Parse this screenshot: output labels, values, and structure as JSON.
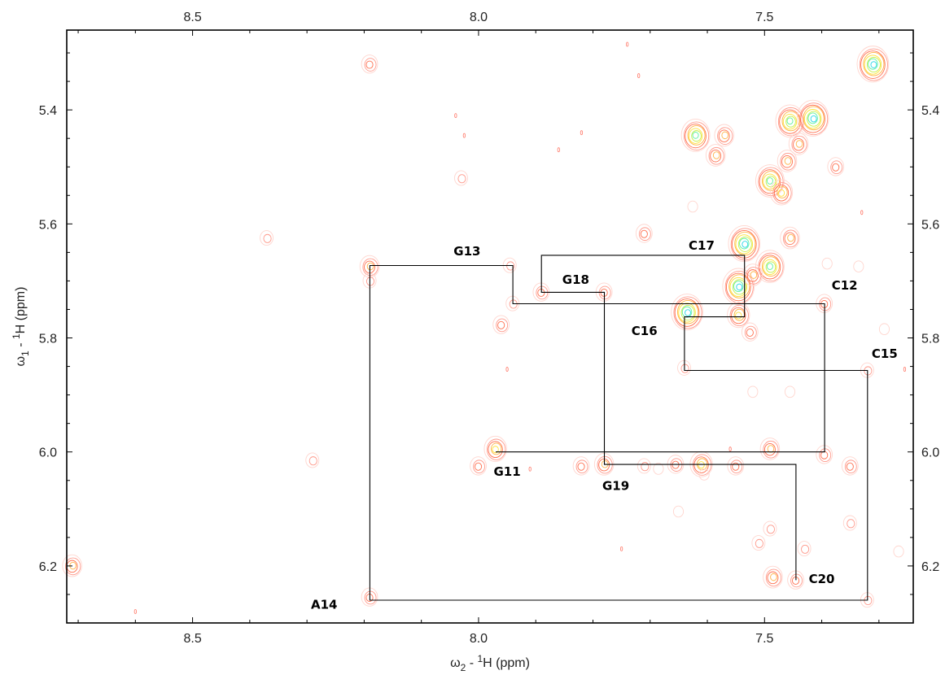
{
  "chart_data": {
    "type": "scatter",
    "subtype": "2D NMR contour spectrum (NOESY sequential walk)",
    "title": "",
    "x_axis": {
      "label_prefix": "ω",
      "label_sub": "2",
      "label_mid": " - ",
      "label_sup": "1",
      "label_suffix": "H  (ppm)",
      "lim": [
        8.72,
        7.24
      ],
      "reversed": true,
      "ticks": [
        8.5,
        8.0,
        7.5
      ],
      "tick_labels": [
        "8.5",
        "8.0",
        "7.5"
      ],
      "minor_step": 0.1
    },
    "y_axis": {
      "label_prefix": "ω",
      "label_sub": "1",
      "label_mid": " - ",
      "label_sup": "1",
      "label_suffix": "H  (ppm)",
      "lim": [
        5.26,
        6.3
      ],
      "reversed": true,
      "ticks": [
        5.4,
        5.6,
        5.8,
        6.0,
        6.2
      ],
      "tick_labels": [
        "5.4",
        "5.6",
        "5.8",
        "6.0",
        "6.2"
      ],
      "minor_step": 0.05
    },
    "grid": false,
    "contour_colors": [
      "#ffd6cf",
      "#ff9a8c",
      "#ff6f4e",
      "#ffb347",
      "#ffe23a",
      "#c6ef4a",
      "#5ff0a0",
      "#29d6e8"
    ],
    "peaks": [
      {
        "x": 8.19,
        "y": 5.32,
        "i": 3
      },
      {
        "x": 7.31,
        "y": 5.32,
        "i": 8
      },
      {
        "x": 7.62,
        "y": 5.445,
        "i": 7
      },
      {
        "x": 7.57,
        "y": 5.445,
        "i": 4
      },
      {
        "x": 7.455,
        "y": 5.42,
        "i": 7
      },
      {
        "x": 7.415,
        "y": 5.415,
        "i": 8
      },
      {
        "x": 7.44,
        "y": 5.46,
        "i": 4
      },
      {
        "x": 7.46,
        "y": 5.49,
        "i": 4
      },
      {
        "x": 7.49,
        "y": 5.525,
        "i": 7
      },
      {
        "x": 7.47,
        "y": 5.545,
        "i": 5
      },
      {
        "x": 7.585,
        "y": 5.48,
        "i": 4
      },
      {
        "x": 7.375,
        "y": 5.5,
        "i": 3
      },
      {
        "x": 8.03,
        "y": 5.52,
        "i": 2
      },
      {
        "x": 7.71,
        "y": 5.617,
        "i": 3
      },
      {
        "x": 7.535,
        "y": 5.635,
        "i": 8
      },
      {
        "x": 7.455,
        "y": 5.625,
        "i": 4
      },
      {
        "x": 7.49,
        "y": 5.675,
        "i": 7
      },
      {
        "x": 7.545,
        "y": 5.71,
        "i": 8
      },
      {
        "x": 7.52,
        "y": 5.69,
        "i": 4
      },
      {
        "x": 7.635,
        "y": 5.755,
        "i": 8
      },
      {
        "x": 7.545,
        "y": 5.76,
        "i": 5
      },
      {
        "x": 7.525,
        "y": 5.79,
        "i": 3
      },
      {
        "x": 8.19,
        "y": 5.675,
        "i": 4
      },
      {
        "x": 8.19,
        "y": 5.7,
        "i": 2
      },
      {
        "x": 7.945,
        "y": 5.673,
        "i": 2
      },
      {
        "x": 7.89,
        "y": 5.72,
        "i": 3
      },
      {
        "x": 7.78,
        "y": 5.72,
        "i": 3
      },
      {
        "x": 7.94,
        "y": 5.74,
        "i": 2
      },
      {
        "x": 7.96,
        "y": 5.777,
        "i": 3
      },
      {
        "x": 7.395,
        "y": 5.74,
        "i": 3
      },
      {
        "x": 7.32,
        "y": 5.857,
        "i": 2
      },
      {
        "x": 7.64,
        "y": 5.853,
        "i": 2
      },
      {
        "x": 8.37,
        "y": 5.625,
        "i": 2
      },
      {
        "x": 7.97,
        "y": 5.995,
        "i": 5
      },
      {
        "x": 8.0,
        "y": 6.025,
        "i": 3
      },
      {
        "x": 7.78,
        "y": 6.022,
        "i": 4
      },
      {
        "x": 7.82,
        "y": 6.025,
        "i": 3
      },
      {
        "x": 7.61,
        "y": 6.022,
        "i": 5
      },
      {
        "x": 7.655,
        "y": 6.022,
        "i": 3
      },
      {
        "x": 7.55,
        "y": 6.025,
        "i": 3
      },
      {
        "x": 7.49,
        "y": 5.995,
        "i": 4
      },
      {
        "x": 7.395,
        "y": 6.005,
        "i": 3
      },
      {
        "x": 7.35,
        "y": 6.025,
        "i": 3
      },
      {
        "x": 7.71,
        "y": 6.025,
        "i": 2
      },
      {
        "x": 7.35,
        "y": 6.125,
        "i": 2
      },
      {
        "x": 7.49,
        "y": 6.135,
        "i": 2
      },
      {
        "x": 7.51,
        "y": 6.16,
        "i": 2
      },
      {
        "x": 7.43,
        "y": 6.17,
        "i": 2
      },
      {
        "x": 7.485,
        "y": 6.22,
        "i": 4
      },
      {
        "x": 7.445,
        "y": 6.225,
        "i": 3
      },
      {
        "x": 8.19,
        "y": 6.255,
        "i": 3
      },
      {
        "x": 7.32,
        "y": 6.26,
        "i": 2
      },
      {
        "x": 8.71,
        "y": 6.2,
        "i": 4
      },
      {
        "x": 8.29,
        "y": 6.015,
        "i": 2
      },
      {
        "x": 7.39,
        "y": 5.67,
        "i": 1
      },
      {
        "x": 7.335,
        "y": 5.675,
        "i": 1
      },
      {
        "x": 7.52,
        "y": 5.895,
        "i": 1
      },
      {
        "x": 7.455,
        "y": 5.895,
        "i": 1
      },
      {
        "x": 7.625,
        "y": 5.57,
        "i": 1
      },
      {
        "x": 7.685,
        "y": 6.03,
        "i": 1
      },
      {
        "x": 7.265,
        "y": 6.175,
        "i": 1
      },
      {
        "x": 7.29,
        "y": 5.785,
        "i": 1
      },
      {
        "x": 7.605,
        "y": 6.04,
        "i": 1
      },
      {
        "x": 7.65,
        "y": 6.105,
        "i": 1
      }
    ],
    "noise": [
      {
        "x": 8.04,
        "y": 5.41
      },
      {
        "x": 7.86,
        "y": 5.47
      },
      {
        "x": 7.95,
        "y": 5.855
      },
      {
        "x": 7.74,
        "y": 5.285
      },
      {
        "x": 7.72,
        "y": 5.34
      },
      {
        "x": 7.82,
        "y": 5.44
      },
      {
        "x": 8.6,
        "y": 6.28
      },
      {
        "x": 7.75,
        "y": 6.17
      },
      {
        "x": 7.91,
        "y": 6.03
      },
      {
        "x": 7.255,
        "y": 5.855
      },
      {
        "x": 7.33,
        "y": 5.58
      },
      {
        "x": 7.56,
        "y": 5.995
      },
      {
        "x": 8.025,
        "y": 5.445
      }
    ],
    "walk": {
      "color": "#000000",
      "points": [
        {
          "x": 7.97,
          "y": 6.0
        },
        {
          "x": 7.395,
          "y": 6.0
        },
        {
          "x": 7.395,
          "y": 5.74
        },
        {
          "x": 7.94,
          "y": 5.74
        },
        {
          "x": 7.94,
          "y": 5.673
        },
        {
          "x": 8.19,
          "y": 5.673
        },
        {
          "x": 8.19,
          "y": 6.26
        },
        {
          "x": 7.32,
          "y": 6.26
        },
        {
          "x": 7.32,
          "y": 5.857
        },
        {
          "x": 7.64,
          "y": 5.857
        },
        {
          "x": 7.64,
          "y": 5.763
        },
        {
          "x": 7.535,
          "y": 5.763
        },
        {
          "x": 7.535,
          "y": 5.655
        },
        {
          "x": 7.89,
          "y": 5.655
        },
        {
          "x": 7.89,
          "y": 5.72
        },
        {
          "x": 7.78,
          "y": 5.72
        },
        {
          "x": 7.78,
          "y": 6.022
        },
        {
          "x": 7.445,
          "y": 6.022
        },
        {
          "x": 7.445,
          "y": 6.225
        }
      ]
    },
    "annotations": [
      {
        "text": "G13",
        "x": 8.02,
        "y": 5.655
      },
      {
        "text": "C17",
        "x": 7.61,
        "y": 5.645
      },
      {
        "text": "G18",
        "x": 7.83,
        "y": 5.705
      },
      {
        "text": "C12",
        "x": 7.36,
        "y": 5.715
      },
      {
        "text": "C16",
        "x": 7.71,
        "y": 5.795
      },
      {
        "text": "C15",
        "x": 7.29,
        "y": 5.835
      },
      {
        "text": "G11",
        "x": 7.95,
        "y": 6.042
      },
      {
        "text": "G19",
        "x": 7.76,
        "y": 6.067
      },
      {
        "text": "C20",
        "x": 7.4,
        "y": 6.23
      },
      {
        "text": "A14",
        "x": 8.27,
        "y": 6.275
      }
    ]
  }
}
